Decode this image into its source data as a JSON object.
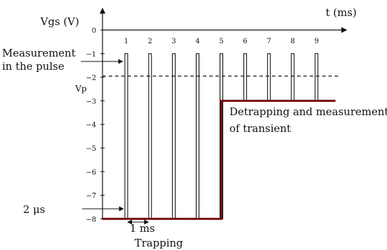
{
  "y_axis_label": "Vgs (V)",
  "x_axis_label": "t (ms)",
  "x_ticks": [
    "1",
    "2",
    "3",
    "4",
    "5",
    "6",
    "7",
    "8",
    "9"
  ],
  "y_ticks": [
    "0",
    "−1",
    "−2",
    "−3",
    "−4",
    "−5",
    "−6",
    "−7",
    "−8"
  ],
  "vp_label": "Vp",
  "vp_value": -2,
  "labels": {
    "measurement_line1": "Measurement",
    "measurement_line2": "in the pulse",
    "detrapping_line1": "Detrapping and measurement",
    "detrapping_line2": "of transient",
    "pulse_width": "2 μs",
    "period": "1 ms",
    "trapping": "Trapping"
  },
  "chart_data": {
    "type": "line",
    "xlabel": "t (ms)",
    "ylabel": "Vgs (V)",
    "xlim": [
      0,
      9.8
    ],
    "ylim": [
      -8,
      0
    ],
    "pulse_times_ms": [
      1,
      2,
      3,
      4,
      5,
      6,
      7,
      8,
      9
    ],
    "pulse_level_V": -1,
    "series": [
      {
        "name": "",
        "x": [
          0,
          1,
          1,
          2,
          2,
          3,
          3,
          4,
          4,
          5,
          5,
          6,
          6,
          7,
          7,
          8,
          8,
          9,
          9
        ],
        "y": [
          -8,
          -8,
          -1,
          -8,
          -1,
          -8,
          -1,
          -8,
          -1,
          -8,
          -1,
          -3,
          -1,
          -3,
          -1,
          -3,
          -1,
          -3,
          -1
        ]
      },
      {
        "name": "",
        "x": [
          0,
          5,
          5,
          9.8
        ],
        "y": [
          -8,
          -8,
          -3,
          -3
        ]
      }
    ],
    "annotations": [
      "Vp = −2 (dashed line)",
      "Measurement in the pulse",
      "2 μs",
      "1 ms",
      "Trapping",
      "Detrapping and measurement of transient"
    ]
  }
}
